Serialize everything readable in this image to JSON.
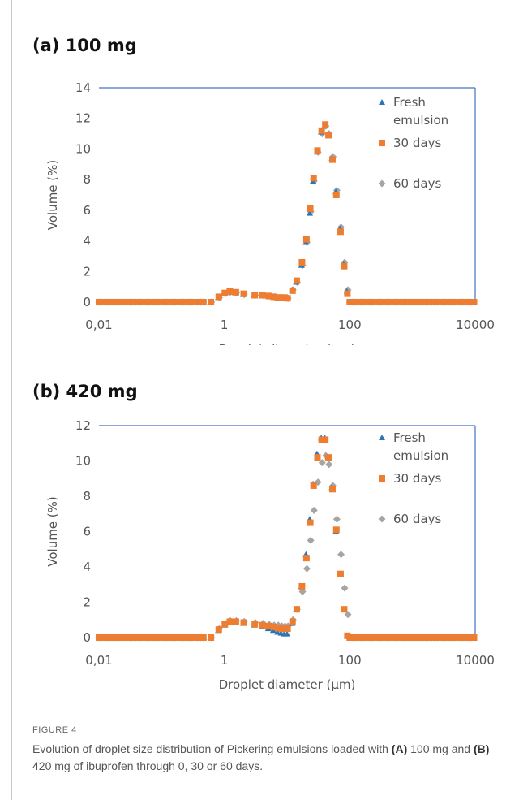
{
  "panels": [
    {
      "title": "(a) 100 mg"
    },
    {
      "title": "(b) 420 mg"
    }
  ],
  "figure": {
    "label": "FIGURE 4",
    "caption": {
      "p1": "Evolution of droplet size distribution of Pickering emulsions loaded with ",
      "a": "(A)",
      "p2": " 100 mg and ",
      "b": "(B)",
      "p3": " 420 mg of ibuprofen through 0, 30 or 60 days."
    }
  },
  "colors": {
    "fresh": "#2e75b6",
    "d30": "#ed7d31",
    "d60": "#a5a5a5",
    "frame": "#4472c4"
  },
  "chart_data": [
    {
      "type": "scatter",
      "title": "(a) 100 mg",
      "xlabel": "Droplet diameter (µm)",
      "ylabel": "Volume (%)",
      "xscale": "log",
      "xlim": [
        0.01,
        10000
      ],
      "ylim": [
        0,
        14
      ],
      "xticks": [
        "0,01",
        "1",
        "100",
        "10000"
      ],
      "yticks": [
        "0",
        "2",
        "4",
        "6",
        "8",
        "10",
        "12",
        "14"
      ],
      "legend_position": "top-right",
      "legend": [
        "Fresh emulsion",
        "30 days",
        "60 days"
      ],
      "series": [
        {
          "name": "Fresh emulsion",
          "x": [
            0.6,
            0.8,
            1.0,
            1.2,
            1.5,
            2.0,
            3.0,
            4.0,
            5.0,
            6.0,
            7.0,
            8.0,
            9.0,
            10,
            12,
            14,
            17,
            20,
            23,
            26,
            30,
            35,
            40,
            45,
            52,
            60,
            70,
            80,
            90
          ],
          "y": [
            0,
            0.3,
            0.55,
            0.65,
            0.6,
            0.5,
            0.45,
            0.45,
            0.4,
            0.35,
            0.3,
            0.3,
            0.3,
            0.25,
            0.8,
            1.3,
            2.4,
            3.9,
            5.8,
            7.9,
            9.8,
            11.1,
            11.5,
            11.0,
            9.4,
            7.2,
            4.8,
            2.5,
            0.7
          ]
        },
        {
          "name": "30 days",
          "x": [
            0.6,
            0.8,
            1.0,
            1.2,
            1.5,
            2.0,
            3.0,
            4.0,
            5.0,
            6.0,
            7.0,
            8.0,
            9.0,
            10,
            12,
            14,
            17,
            20,
            23,
            26,
            30,
            35,
            40,
            45,
            52,
            60,
            70,
            80,
            90
          ],
          "y": [
            0,
            0.35,
            0.6,
            0.7,
            0.65,
            0.55,
            0.45,
            0.45,
            0.4,
            0.35,
            0.3,
            0.3,
            0.3,
            0.25,
            0.75,
            1.4,
            2.6,
            4.1,
            6.1,
            8.1,
            9.9,
            11.2,
            11.6,
            10.9,
            9.3,
            7.0,
            4.6,
            2.35,
            0.55
          ]
        },
        {
          "name": "60 days",
          "x": [
            0.6,
            0.8,
            1.0,
            1.2,
            1.5,
            2.0,
            3.0,
            4.0,
            5.0,
            6.0,
            7.0,
            8.0,
            9.0,
            10,
            12,
            14,
            17,
            20,
            23,
            26,
            30,
            35,
            40,
            45,
            52,
            60,
            70,
            80,
            90
          ],
          "y": [
            0,
            0.3,
            0.55,
            0.65,
            0.6,
            0.5,
            0.45,
            0.45,
            0.4,
            0.35,
            0.3,
            0.3,
            0.3,
            0.25,
            0.8,
            1.3,
            2.4,
            3.9,
            5.9,
            7.9,
            9.8,
            11.0,
            11.5,
            11.0,
            9.5,
            7.3,
            4.9,
            2.6,
            0.8
          ]
        }
      ]
    },
    {
      "type": "scatter",
      "title": "(b) 420 mg",
      "xlabel": "Droplet diameter (µm)",
      "ylabel": "Volume (%)",
      "xscale": "log",
      "xlim": [
        0.01,
        10000
      ],
      "ylim": [
        0,
        12
      ],
      "xticks": [
        "0,01",
        "1",
        "100",
        "10000"
      ],
      "yticks": [
        "0",
        "2",
        "4",
        "6",
        "8",
        "10",
        "12"
      ],
      "legend_position": "top-right",
      "legend": [
        "Fresh emulsion",
        "30 days",
        "60 days"
      ],
      "series": [
        {
          "name": "Fresh emulsion",
          "x": [
            0.6,
            0.8,
            1.0,
            1.2,
            1.5,
            2.0,
            3.0,
            4.0,
            5.0,
            6.0,
            7.0,
            8.0,
            9.0,
            10,
            12,
            14,
            17,
            20,
            23,
            26,
            30,
            35,
            40,
            45,
            52,
            60,
            70,
            80,
            90
          ],
          "y": [
            0,
            0.4,
            0.7,
            0.85,
            0.85,
            0.8,
            0.7,
            0.6,
            0.5,
            0.4,
            0.3,
            0.25,
            0.2,
            0.2,
            0.8,
            1.6,
            2.9,
            4.7,
            6.7,
            8.7,
            10.4,
            11.3,
            11.3,
            10.2,
            8.5,
            6.0,
            3.6,
            1.6,
            0.1
          ]
        },
        {
          "name": "30 days",
          "x": [
            0.6,
            0.8,
            1.0,
            1.2,
            1.5,
            2.0,
            3.0,
            4.0,
            5.0,
            6.0,
            7.0,
            8.0,
            9.0,
            10,
            12,
            14,
            17,
            20,
            23,
            26,
            30,
            35,
            40,
            45,
            52,
            60,
            70,
            80,
            90
          ],
          "y": [
            0,
            0.45,
            0.75,
            0.9,
            0.9,
            0.85,
            0.75,
            0.7,
            0.65,
            0.6,
            0.55,
            0.5,
            0.5,
            0.5,
            0.9,
            1.6,
            2.9,
            4.5,
            6.5,
            8.6,
            10.2,
            11.2,
            11.2,
            10.2,
            8.4,
            6.1,
            3.6,
            1.6,
            0.1
          ]
        },
        {
          "name": "60 days",
          "x": [
            0.6,
            0.8,
            1.0,
            1.2,
            1.5,
            2.0,
            3.0,
            4.0,
            5.0,
            6.0,
            7.0,
            8.0,
            9.0,
            10,
            12,
            14,
            17,
            20,
            23,
            26,
            30,
            35,
            40,
            45,
            52,
            60,
            70,
            80,
            90
          ],
          "y": [
            0,
            0.5,
            0.8,
            0.95,
            0.95,
            0.9,
            0.85,
            0.8,
            0.75,
            0.7,
            0.7,
            0.65,
            0.65,
            0.65,
            1.0,
            1.6,
            2.6,
            3.9,
            5.5,
            7.2,
            8.8,
            9.9,
            10.3,
            9.8,
            8.6,
            6.7,
            4.7,
            2.8,
            1.3
          ]
        }
      ]
    }
  ]
}
